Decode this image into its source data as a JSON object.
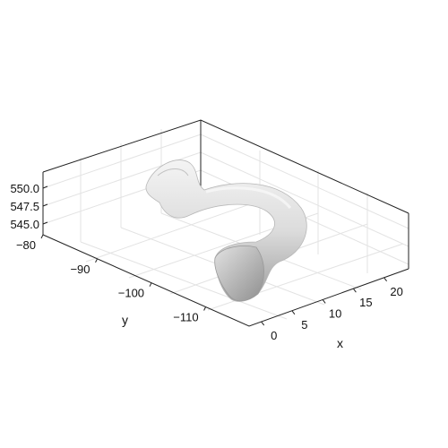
{
  "chart_data": {
    "type": "surface3d",
    "title": "",
    "xlabel": "x",
    "ylabel": "y",
    "zlabel": "",
    "x_ticks": [
      "0",
      "5",
      "10",
      "15",
      "20"
    ],
    "y_ticks": [
      "−80",
      "−90",
      "−100",
      "−110"
    ],
    "z_ticks": [
      "545.0",
      "547.5",
      "550.0"
    ],
    "x_tick_values": [
      0,
      5,
      10,
      15,
      20
    ],
    "y_tick_values": [
      -80,
      -90,
      -100,
      -110
    ],
    "z_tick_values": [
      545.0,
      547.5,
      550.0
    ],
    "xlim": [
      -2,
      24
    ],
    "ylim": [
      -80,
      -118
    ],
    "zlim": [
      543.5,
      552
    ],
    "grid": true,
    "surface_color": "#d9d9d9",
    "object": "curved tubular shell (hook shape)"
  }
}
